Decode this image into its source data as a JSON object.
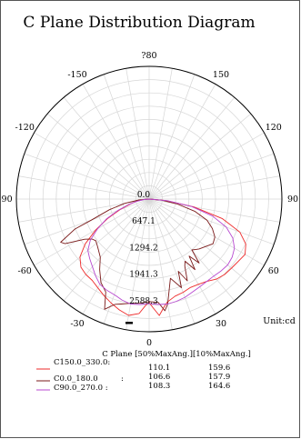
{
  "chart_data": {
    "type": "polar-line",
    "title": "C Plane Distribution Diagram",
    "unit_label": "Unit:cd",
    "angle_labels": [
      {
        "angle": 180,
        "text": "?80"
      },
      {
        "angle": 150,
        "text": "150"
      },
      {
        "angle": -150,
        "text": "-150"
      },
      {
        "angle": 120,
        "text": "120"
      },
      {
        "angle": -120,
        "text": "-120"
      },
      {
        "angle": 90,
        "text": "90"
      },
      {
        "angle": -90,
        "text": "-90"
      },
      {
        "angle": 60,
        "text": "60"
      },
      {
        "angle": -60,
        "text": "-60"
      },
      {
        "angle": 30,
        "text": "30"
      },
      {
        "angle": -30,
        "text": "-30"
      },
      {
        "angle": 0,
        "text": "0"
      }
    ],
    "ring_labels": [
      "0.0",
      "647.1",
      "1294.2",
      "1941.3",
      "2588.3"
    ],
    "ring_values": [
      0,
      647.1,
      1294.2,
      1941.3,
      2588.3
    ],
    "r_max": 3235.4,
    "legend": {
      "header": "C Plane [50%MaxAng.][10%MaxAng.]",
      "entries": [
        {
          "name": "C150.0_330.0:",
          "v50": "110.1",
          "v10": "159.6",
          "color": "#ee2a2a"
        },
        {
          "name": "C0.0_180.0",
          "sep": ":",
          "v50": "106.6",
          "v10": "157.9",
          "color": "#7a1a1a"
        },
        {
          "name": "C90.0_270.0 :",
          "v50": "108.3",
          "v10": "164.6",
          "color": "#b84ad0"
        }
      ]
    },
    "series": [
      {
        "name": "C150.0_330.0",
        "color": "#ee2a2a",
        "points": [
          [
            -90,
            0
          ],
          [
            -85,
            150
          ],
          [
            -80,
            310
          ],
          [
            -75,
            480
          ],
          [
            -70,
            760
          ],
          [
            -65,
            1110
          ],
          [
            -60,
            1500
          ],
          [
            -55,
            1900
          ],
          [
            -50,
            2200
          ],
          [
            -45,
            2350
          ],
          [
            -40,
            2400
          ],
          [
            -35,
            2420
          ],
          [
            -30,
            2500
          ],
          [
            -25,
            2600
          ],
          [
            -20,
            2700
          ],
          [
            -15,
            2800
          ],
          [
            -10,
            2880
          ],
          [
            -5,
            2800
          ],
          [
            -2,
            2600
          ],
          [
            0,
            2520
          ],
          [
            2,
            2650
          ],
          [
            5,
            2850
          ],
          [
            8,
            2650
          ],
          [
            10,
            2550
          ],
          [
            15,
            2450
          ],
          [
            20,
            2420
          ],
          [
            25,
            2380
          ],
          [
            30,
            2400
          ],
          [
            35,
            2450
          ],
          [
            40,
            2550
          ],
          [
            45,
            2600
          ],
          [
            50,
            2620
          ],
          [
            55,
            2650
          ],
          [
            60,
            2700
          ],
          [
            65,
            2600
          ],
          [
            70,
            2350
          ],
          [
            75,
            1850
          ],
          [
            80,
            1100
          ],
          [
            85,
            400
          ],
          [
            90,
            0
          ]
        ]
      },
      {
        "name": "C0.0_180.0",
        "color": "#7a1a1a",
        "points": [
          [
            -90,
            0
          ],
          [
            -85,
            250
          ],
          [
            -80,
            600
          ],
          [
            -75,
            1000
          ],
          [
            -70,
            1500
          ],
          [
            -68,
            1950
          ],
          [
            -64,
            2400
          ],
          [
            -62,
            2320
          ],
          [
            -58,
            1850
          ],
          [
            -55,
            1700
          ],
          [
            -52,
            1650
          ],
          [
            -48,
            1700
          ],
          [
            -45,
            1750
          ],
          [
            -40,
            1850
          ],
          [
            -35,
            2100
          ],
          [
            -30,
            2350
          ],
          [
            -25,
            2500
          ],
          [
            -22,
            2900
          ],
          [
            -18,
            2700
          ],
          [
            -15,
            2650
          ],
          [
            -10,
            2580
          ],
          [
            -5,
            2550
          ],
          [
            0,
            2500
          ],
          [
            5,
            2530
          ],
          [
            8,
            2750
          ],
          [
            10,
            2600
          ],
          [
            15,
            2000
          ],
          [
            20,
            2300
          ],
          [
            22,
            1900
          ],
          [
            25,
            2200
          ],
          [
            28,
            1850
          ],
          [
            30,
            1750
          ],
          [
            33,
            2050
          ],
          [
            35,
            1700
          ],
          [
            38,
            1980
          ],
          [
            40,
            1620
          ],
          [
            43,
            1680
          ],
          [
            45,
            1720
          ],
          [
            50,
            1800
          ],
          [
            55,
            1900
          ],
          [
            60,
            1850
          ],
          [
            65,
            1700
          ],
          [
            70,
            1500
          ],
          [
            75,
            1150
          ],
          [
            80,
            700
          ],
          [
            85,
            300
          ],
          [
            90,
            0
          ]
        ]
      },
      {
        "name": "C90.0_270.0",
        "color": "#b84ad0",
        "points": [
          [
            -90,
            0
          ],
          [
            -85,
            120
          ],
          [
            -80,
            300
          ],
          [
            -75,
            520
          ],
          [
            -70,
            800
          ],
          [
            -65,
            1150
          ],
          [
            -60,
            1450
          ],
          [
            -55,
            1750
          ],
          [
            -50,
            1950
          ],
          [
            -45,
            2050
          ],
          [
            -40,
            2150
          ],
          [
            -35,
            2280
          ],
          [
            -30,
            2400
          ],
          [
            -25,
            2450
          ],
          [
            -20,
            2480
          ],
          [
            -15,
            2550
          ],
          [
            -10,
            2600
          ],
          [
            -5,
            2580
          ],
          [
            0,
            2550
          ],
          [
            5,
            2580
          ],
          [
            10,
            2600
          ],
          [
            15,
            2580
          ],
          [
            20,
            2550
          ],
          [
            25,
            2500
          ],
          [
            30,
            2470
          ],
          [
            35,
            2450
          ],
          [
            40,
            2450
          ],
          [
            45,
            2480
          ],
          [
            50,
            2500
          ],
          [
            55,
            2470
          ],
          [
            60,
            2400
          ],
          [
            65,
            2250
          ],
          [
            70,
            2000
          ],
          [
            75,
            1600
          ],
          [
            80,
            1050
          ],
          [
            85,
            450
          ],
          [
            90,
            0
          ]
        ]
      }
    ]
  }
}
